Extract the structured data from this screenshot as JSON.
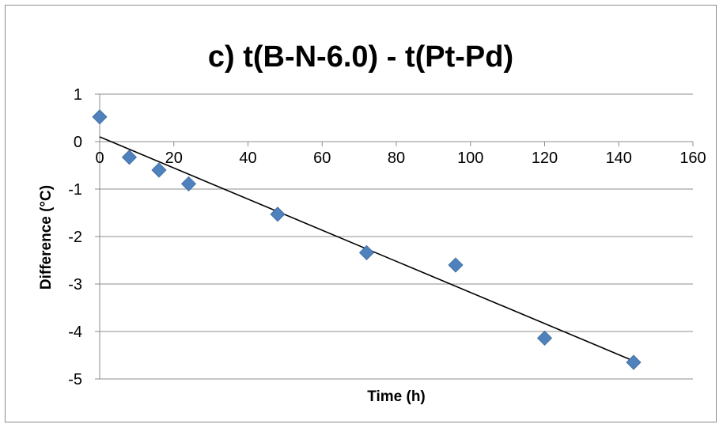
{
  "chart_data": {
    "type": "scatter",
    "title": "c) t(B-N-6.0) - t(Pt-Pd)",
    "xlabel": "Time (h)",
    "ylabel": "Difference (°C)",
    "xlim": [
      0,
      160
    ],
    "ylim": [
      -5,
      1
    ],
    "x_ticks": [
      0,
      20,
      40,
      60,
      80,
      100,
      120,
      140,
      160
    ],
    "y_ticks": [
      1,
      0,
      -1,
      -2,
      -3,
      -4,
      -5
    ],
    "grid": "horizontal",
    "legend": "none",
    "series": [
      {
        "color": "#4f81bd",
        "marker": "diamond",
        "x": [
          0,
          8,
          16,
          24,
          48,
          72,
          96,
          120,
          144
        ],
        "y": [
          0.52,
          -0.33,
          -0.6,
          -0.89,
          -1.53,
          -2.34,
          -2.6,
          -4.14,
          -4.65
        ]
      }
    ],
    "trendline": {
      "type": "linear",
      "color": "#000000",
      "x": [
        0,
        144
      ],
      "y": [
        0.1,
        -4.62
      ]
    }
  }
}
